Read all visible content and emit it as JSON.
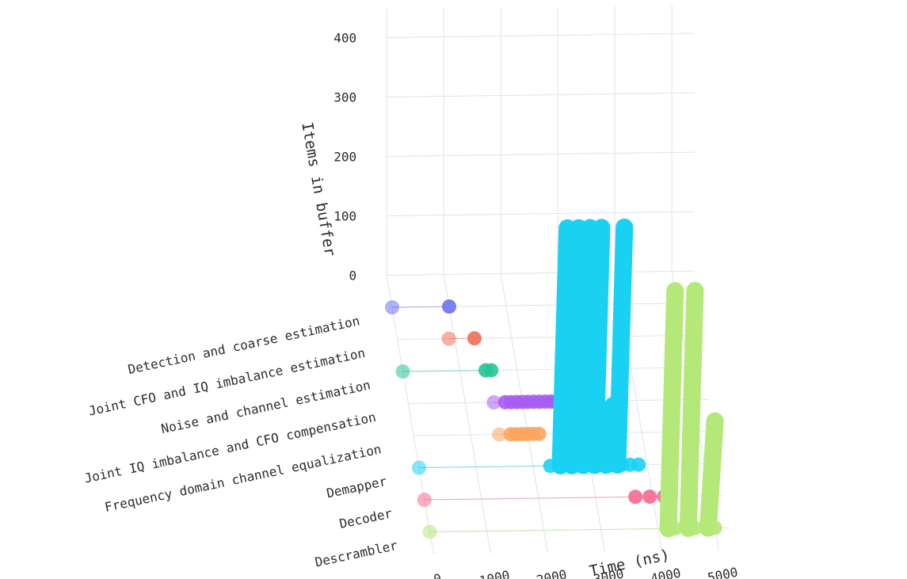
{
  "chart_data": {
    "type": "scatter",
    "x_label": "Time (ns)",
    "z_label": "Items in buffer",
    "x_ticks": [
      "0",
      "1000",
      "2000",
      "3000",
      "4000",
      "5000"
    ],
    "z_ticks": [
      "0",
      "100",
      "200",
      "300",
      "400"
    ],
    "categories": [
      "Detection and coarse estimation",
      "Joint CFO and IQ imbalance estimation",
      "Noise and channel estimation",
      "Joint IQ imbalance and CFO compensation",
      "Frequency domain channel equalization",
      "Demapper",
      "Decoder",
      "Descrambler"
    ],
    "x_range": [
      0,
      5000
    ],
    "z_range": [
      0,
      400
    ],
    "series": [
      {
        "category": "Detection and coarse estimation",
        "color": "#6b72ee",
        "points": [
          [
            0,
            0
          ],
          [
            1000,
            0
          ]
        ]
      },
      {
        "category": "Joint CFO and IQ imbalance estimation",
        "color": "#ef6f58",
        "points": [
          [
            900,
            0
          ],
          [
            1350,
            0
          ]
        ]
      },
      {
        "category": "Noise and channel estimation",
        "color": "#27c596",
        "points": [
          [
            0,
            0
          ],
          [
            1450,
            0
          ],
          [
            1550,
            0
          ]
        ]
      },
      {
        "category": "Joint IQ imbalance and CFO compensation",
        "color": "#a95cf2",
        "points": [
          [
            1500,
            0
          ],
          [
            1700,
            0
          ],
          [
            1800,
            0
          ],
          [
            1900,
            0
          ],
          [
            2000,
            0
          ],
          [
            2100,
            0
          ],
          [
            2200,
            0
          ],
          [
            2300,
            0
          ],
          [
            2400,
            0
          ],
          [
            2500,
            0
          ],
          [
            2600,
            0
          ],
          [
            2700,
            0
          ]
        ]
      },
      {
        "category": "Frequency domain channel equalization",
        "color": "#fda460",
        "points": [
          [
            1500,
            0
          ],
          [
            1700,
            0
          ],
          [
            1800,
            0
          ],
          [
            1900,
            0
          ],
          [
            2000,
            0
          ],
          [
            2100,
            0
          ],
          [
            2200,
            0
          ]
        ]
      },
      {
        "category": "Demapper",
        "color": "#19d2f3",
        "points": [
          [
            0,
            0
          ],
          [
            2300,
            0
          ],
          [
            2450,
            0
          ],
          [
            2650,
            0
          ],
          [
            2800,
            0
          ],
          [
            2950,
            0
          ],
          [
            3100,
            0
          ],
          [
            3250,
            0
          ],
          [
            3400,
            0
          ],
          [
            3550,
            0
          ],
          [
            3700,
            0
          ],
          [
            3850,
            0
          ],
          [
            2600,
            400
          ],
          [
            2800,
            400
          ],
          [
            3000,
            400
          ],
          [
            3200,
            400
          ],
          [
            3400,
            100
          ],
          [
            3600,
            400
          ]
        ]
      },
      {
        "category": "Decoder",
        "color": "#f76992",
        "points": [
          [
            0,
            0
          ],
          [
            3700,
            0
          ],
          [
            3950,
            0
          ],
          [
            4200,
            0
          ]
        ]
      },
      {
        "category": "Descrambler",
        "color": "#b4e878",
        "points": [
          [
            0,
            0
          ],
          [
            4300,
            0
          ],
          [
            4650,
            0
          ],
          [
            5000,
            0
          ],
          [
            4300,
            400
          ],
          [
            4650,
            400
          ],
          [
            5000,
            180
          ]
        ]
      }
    ]
  }
}
